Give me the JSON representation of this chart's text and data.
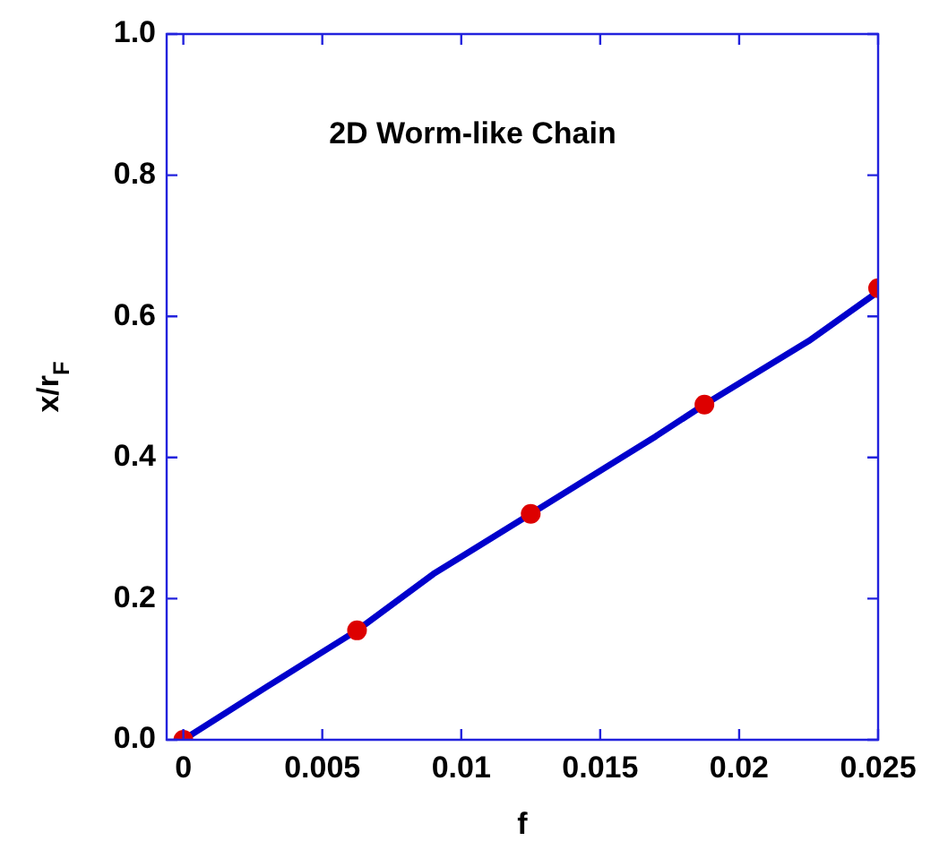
{
  "chart_data": {
    "type": "line",
    "xlabel": "f",
    "ylabel": "x/r$_{F}$",
    "annotations": [
      "2D Worm-like Chain"
    ],
    "xlim": [
      -0.0006,
      0.025
    ],
    "ylim": [
      0,
      1
    ],
    "xticks": [
      0,
      0.005,
      0.01,
      0.015,
      0.02,
      0.025
    ],
    "yticks": [
      {
        "value": 0,
        "label": "0.0"
      },
      {
        "value": 0.2,
        "label": "0.2"
      },
      {
        "value": 0.4,
        "label": "0.4"
      },
      {
        "value": 0.6,
        "label": "0.6"
      },
      {
        "value": 0.8,
        "label": "0.8"
      },
      {
        "value": 1,
        "label": "1.0"
      }
    ],
    "grid": false,
    "legend": false,
    "series": [
      {
        "type": "line",
        "color": "#0000cc",
        "marker": "none",
        "line_style": "solid",
        "x": [
          0,
          0.003,
          0.00625,
          0.009,
          0.0125,
          0.017,
          0.01875,
          0.0225,
          0.025
        ],
        "values": [
          0,
          0.075,
          0.155,
          0.235,
          0.32,
          0.43,
          0.475,
          0.565,
          0.635
        ]
      },
      {
        "type": "scatter",
        "color": "#dd0000",
        "marker": "circle",
        "x": [
          0,
          0.00625,
          0.0125,
          0.01875,
          0.025
        ],
        "values": [
          0,
          0.155,
          0.32,
          0.475,
          0.64
        ]
      }
    ]
  }
}
